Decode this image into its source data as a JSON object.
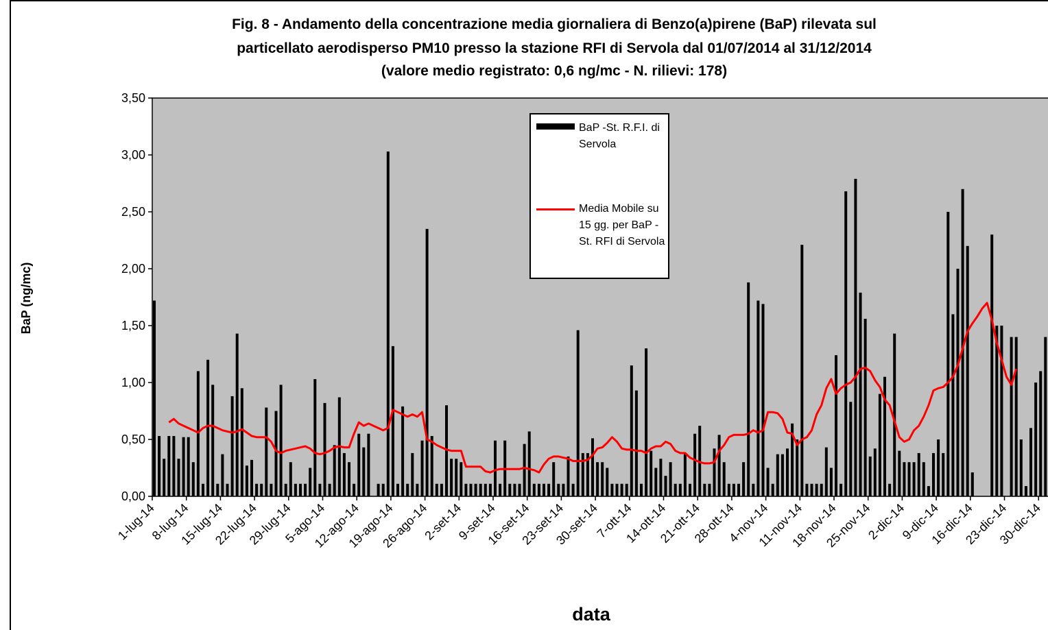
{
  "chart_data": {
    "type": "bar+line",
    "title": [
      "Fig. 8 - Andamento della concentrazione media giornaliera di Benzo(a)pirene (BaP) rilevata sul",
      "particellato aerodisperso PM10 presso la stazione RFI di Servola dal 01/07/2014 al 31/12/2014",
      "(valore medio registrato: 0,6 ng/mc - N. rilievi: 178)"
    ],
    "xlabel": "data",
    "ylabel": "BaP (ng/mc)",
    "ylim": [
      0,
      3.5
    ],
    "yticks": [
      {
        "value": 0,
        "label": "0,00"
      },
      {
        "value": 0.5,
        "label": "0,50"
      },
      {
        "value": 1,
        "label": "1,00"
      },
      {
        "value": 1.5,
        "label": "1,50"
      },
      {
        "value": 2,
        "label": "2,00"
      },
      {
        "value": 2.5,
        "label": "2,50"
      },
      {
        "value": 3,
        "label": "3,00"
      },
      {
        "value": 3.5,
        "label": "3,50"
      }
    ],
    "categories": [
      "1-lug-14",
      null,
      null,
      null,
      null,
      null,
      null,
      "8-lug-14",
      null,
      null,
      null,
      null,
      null,
      null,
      "15-lug-14",
      null,
      null,
      null,
      null,
      null,
      null,
      "22-lug-14",
      null,
      null,
      null,
      null,
      null,
      null,
      "29-lug-14",
      null,
      null,
      null,
      null,
      null,
      null,
      "5-ago-14",
      null,
      null,
      null,
      null,
      null,
      null,
      "12-ago-14",
      null,
      null,
      null,
      null,
      null,
      null,
      "19-ago-14",
      null,
      null,
      null,
      null,
      null,
      null,
      "26-ago-14",
      null,
      null,
      null,
      null,
      null,
      null,
      "2-set-14",
      null,
      null,
      null,
      null,
      null,
      null,
      "9-set-14",
      null,
      null,
      null,
      null,
      null,
      null,
      "16-set-14",
      null,
      null,
      null,
      null,
      null,
      null,
      "23-set-14",
      null,
      null,
      null,
      null,
      null,
      null,
      "30-set-14",
      null,
      null,
      null,
      null,
      null,
      null,
      "7-ott-14",
      null,
      null,
      null,
      null,
      null,
      null,
      "14-ott-14",
      null,
      null,
      null,
      null,
      null,
      null,
      "21-ott-14",
      null,
      null,
      null,
      null,
      null,
      null,
      "28-ott-14",
      null,
      null,
      null,
      null,
      null,
      null,
      "4-nov-14",
      null,
      null,
      null,
      null,
      null,
      null,
      "11-nov-14",
      null,
      null,
      null,
      null,
      null,
      null,
      "18-nov-14",
      null,
      null,
      null,
      null,
      null,
      null,
      "25-nov-14",
      null,
      null,
      null,
      null,
      null,
      null,
      "2-dic-14",
      null,
      null,
      null,
      null,
      null,
      null,
      "9-dic-14",
      null,
      null,
      null,
      null,
      null,
      null,
      "16-dic-14",
      null,
      null,
      null,
      null,
      null,
      null,
      "23-dic-14",
      null,
      null,
      null,
      null,
      null,
      null,
      "30-dic-14",
      null
    ],
    "series": [
      {
        "name": "BaP -St. R.F.I. di Servola",
        "type": "bar",
        "color": "#000000",
        "values": [
          1.72,
          0.53,
          0.33,
          0.53,
          0.53,
          0.33,
          0.52,
          0.52,
          0.3,
          1.1,
          0.11,
          1.2,
          0.98,
          0.11,
          0.37,
          0.11,
          0.88,
          1.43,
          0.95,
          0.27,
          0.32,
          0.11,
          0.11,
          0.78,
          0.11,
          0.75,
          0.98,
          0.11,
          0.3,
          0.11,
          0.11,
          0.11,
          0.25,
          1.03,
          0.11,
          0.82,
          0.11,
          0.45,
          0.87,
          0.38,
          0.3,
          0.11,
          0.55,
          0.43,
          0.55,
          null,
          0.11,
          0.11,
          3.03,
          1.32,
          0.11,
          0.79,
          0.11,
          0.38,
          0.11,
          0.49,
          2.35,
          0.53,
          0.11,
          0.11,
          0.8,
          0.33,
          0.33,
          0.3,
          0.11,
          0.11,
          0.11,
          0.11,
          0.11,
          0.11,
          0.49,
          0.11,
          0.49,
          0.11,
          0.11,
          0.11,
          0.46,
          0.57,
          0.11,
          0.11,
          0.11,
          0.11,
          0.3,
          0.11,
          0.11,
          0.35,
          0.11,
          1.46,
          0.38,
          0.38,
          0.51,
          0.3,
          0.3,
          0.25,
          0.11,
          0.11,
          0.11,
          0.11,
          1.15,
          0.93,
          0.11,
          1.3,
          0.4,
          0.25,
          0.33,
          0.18,
          0.3,
          0.11,
          0.11,
          0.38,
          0.11,
          0.55,
          0.62,
          0.11,
          0.11,
          0.42,
          0.54,
          0.3,
          0.11,
          0.11,
          0.11,
          0.3,
          1.88,
          0.11,
          1.72,
          1.69,
          0.25,
          0.11,
          0.37,
          0.37,
          0.42,
          0.64,
          0.5,
          2.21,
          0.11,
          0.11,
          0.11,
          0.11,
          0.43,
          0.25,
          1.24,
          0.11,
          2.68,
          0.83,
          2.79,
          1.79,
          1.56,
          0.35,
          0.42,
          0.9,
          1.05,
          0.11,
          1.43,
          0.4,
          0.3,
          0.3,
          0.3,
          0.38,
          0.3,
          0.09,
          0.38,
          0.5,
          0.38,
          2.5,
          1.6,
          2.0,
          2.7,
          2.2,
          0.21,
          null,
          null,
          null,
          2.3,
          1.5,
          1.5,
          null,
          1.4,
          1.4,
          0.5,
          0.09,
          0.6,
          1.0,
          1.1,
          1.4
        ]
      },
      {
        "name": "Media Mobile su 15 gg. per BaP -St. RFI di Servola",
        "type": "line",
        "color": "#ff0000",
        "values": [
          null,
          null,
          null,
          0.65,
          0.68,
          0.64,
          0.62,
          0.6,
          0.58,
          0.56,
          0.6,
          0.62,
          0.62,
          0.6,
          0.58,
          0.57,
          0.56,
          0.57,
          0.59,
          0.56,
          0.53,
          0.52,
          0.52,
          0.52,
          0.48,
          0.4,
          0.38,
          0.4,
          0.41,
          0.42,
          0.43,
          0.44,
          0.42,
          0.38,
          0.37,
          0.38,
          0.4,
          0.43,
          0.44,
          0.43,
          0.43,
          0.55,
          0.65,
          0.62,
          0.64,
          0.62,
          0.6,
          0.58,
          0.6,
          0.76,
          0.74,
          0.72,
          0.7,
          0.72,
          0.7,
          0.74,
          0.5,
          0.48,
          0.45,
          0.43,
          0.41,
          0.4,
          0.4,
          0.4,
          0.26,
          0.26,
          0.26,
          0.26,
          0.22,
          0.21,
          0.23,
          0.24,
          0.24,
          0.24,
          0.24,
          0.24,
          0.25,
          0.24,
          0.23,
          0.21,
          0.28,
          0.33,
          0.35,
          0.35,
          0.34,
          0.33,
          0.31,
          0.31,
          0.31,
          0.32,
          0.36,
          0.42,
          0.43,
          0.47,
          0.52,
          0.48,
          0.42,
          0.41,
          0.41,
          0.4,
          0.4,
          0.38,
          0.42,
          0.44,
          0.44,
          0.48,
          0.46,
          0.4,
          0.38,
          0.38,
          0.34,
          0.32,
          0.3,
          0.29,
          0.29,
          0.3,
          0.4,
          0.45,
          0.52,
          0.54,
          0.54,
          0.54,
          0.55,
          0.58,
          0.56,
          0.58,
          0.74,
          0.74,
          0.73,
          0.68,
          0.56,
          0.55,
          0.45,
          0.5,
          0.52,
          0.58,
          0.72,
          0.8,
          0.95,
          1.03,
          0.9,
          0.95,
          0.98,
          1.0,
          1.05,
          1.12,
          1.13,
          1.1,
          1.02,
          0.96,
          0.85,
          0.8,
          0.66,
          0.52,
          0.48,
          0.5,
          0.58,
          0.62,
          0.7,
          0.8,
          0.93,
          0.95,
          0.96,
          1.0,
          1.05,
          1.15,
          1.3,
          1.45,
          1.52,
          1.58,
          1.65,
          1.7,
          1.55,
          1.35,
          1.2,
          1.05,
          0.98,
          1.12,
          null,
          null,
          null,
          null,
          null,
          null
        ]
      }
    ]
  }
}
